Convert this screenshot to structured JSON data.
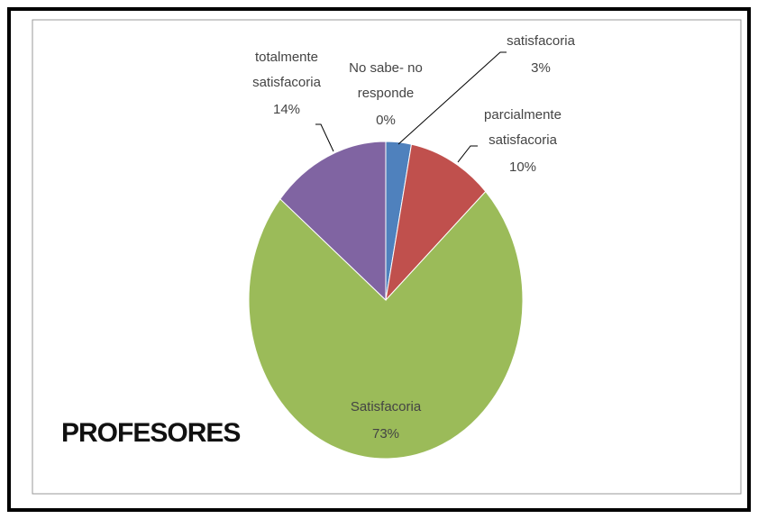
{
  "chart_data": {
    "type": "pie",
    "title": "PROFESORES",
    "categories": [
      "satisfacoria",
      "parcialmente satisfacoria",
      "Satisfacoria",
      "totalmente satisfacoria",
      "No sabe- no responde"
    ],
    "values": [
      3,
      10,
      73,
      14,
      0
    ],
    "value_labels": [
      "3%",
      "10%",
      "73%",
      "14%",
      "0%"
    ],
    "colors": [
      "#4f81bd",
      "#c0504d",
      "#9bbb59",
      "#8064a2",
      "#4bacc6"
    ]
  }
}
